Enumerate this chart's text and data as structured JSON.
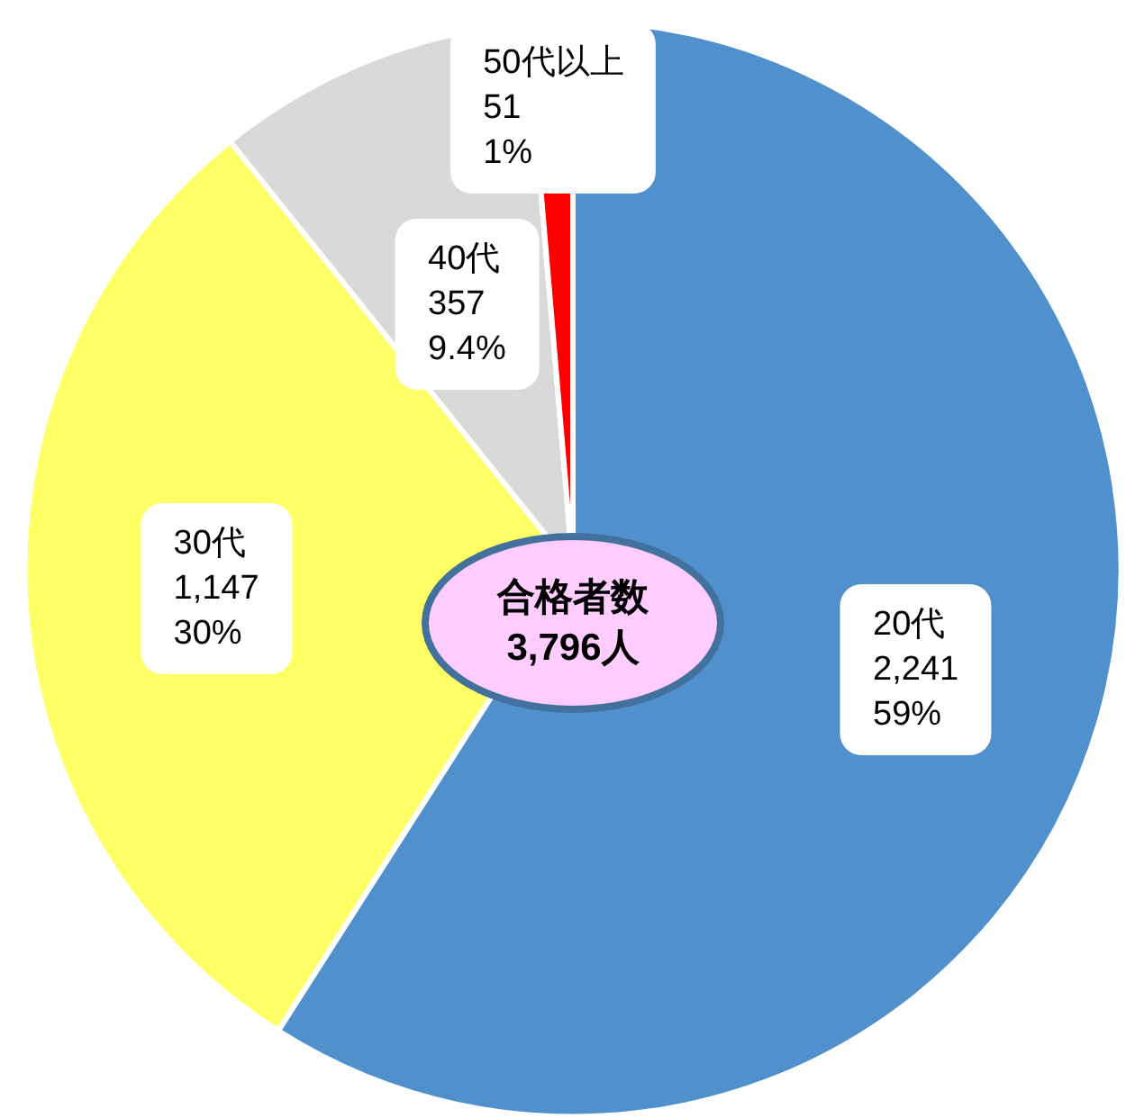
{
  "chart_data": {
    "type": "pie",
    "categories": [
      "20代",
      "30代",
      "40代",
      "50代以上"
    ],
    "values": [
      2241,
      1147,
      357,
      51
    ],
    "value_labels": [
      "2,241\n59%",
      "1,147\n30%",
      "357\n9.4%",
      "51\n1%"
    ],
    "colors": [
      "#5090cd",
      "#ffff66",
      "#d9d9d9",
      "#ff0000"
    ],
    "annotations": [
      "合格者数\n3,796人"
    ],
    "legend": false
  }
}
